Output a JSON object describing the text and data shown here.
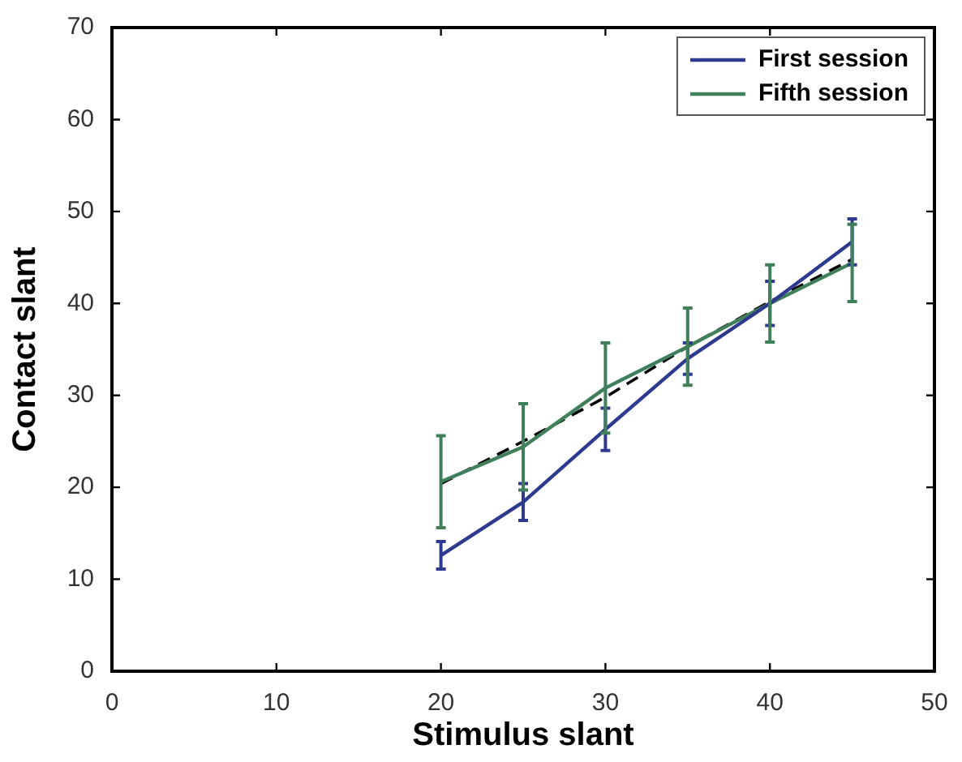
{
  "chart_data": {
    "type": "line",
    "xlabel": "Stimulus slant",
    "ylabel": "Contact slant",
    "x": [
      20,
      25,
      30,
      35,
      40,
      45
    ],
    "series": [
      {
        "name": "First session",
        "color": "#2e3a8f",
        "values": [
          12.6,
          18.4,
          26.3,
          34.0,
          40.0,
          46.7
        ],
        "errors": [
          1.5,
          2.0,
          2.3,
          1.7,
          2.4,
          2.5
        ]
      },
      {
        "name": "Fifth session",
        "color": "#3f7f5a",
        "values": [
          20.6,
          24.4,
          30.8,
          35.3,
          40.0,
          44.4
        ],
        "errors": [
          5.0,
          4.7,
          4.9,
          4.2,
          4.2,
          4.2
        ]
      },
      {
        "color": "#000000",
        "values": [
          20.4,
          25.0,
          29.8,
          35.3,
          40.2,
          44.8
        ],
        "line_style": "dashed"
      }
    ],
    "xlim": [
      0,
      50
    ],
    "xticks": [
      0,
      10,
      20,
      30,
      40,
      50
    ],
    "ylim": [
      0,
      70
    ],
    "yticks": [
      0,
      10,
      20,
      30,
      40,
      50,
      60,
      70
    ],
    "grid": false,
    "legend": "top right",
    "marker": "none",
    "line_style": "solid"
  }
}
